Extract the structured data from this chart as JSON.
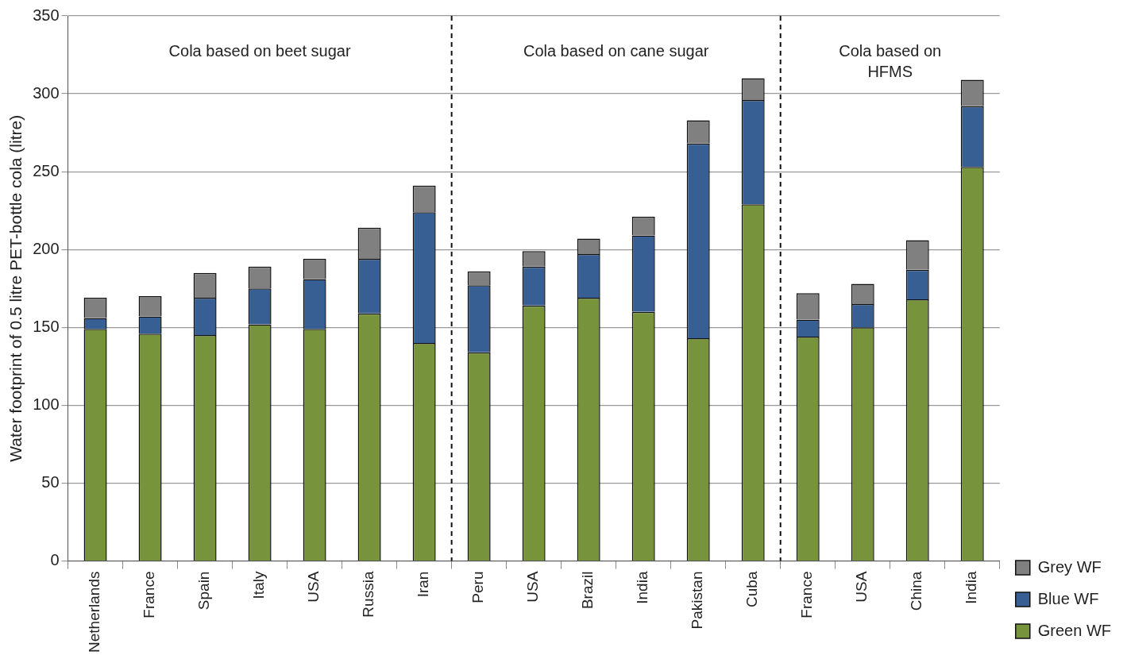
{
  "chart_data": {
    "type": "bar",
    "stacked": true,
    "ylabel": "Water footprint of 0.5 litre PET-bottle cola (litre)",
    "categories": [
      "Netherlands",
      "France",
      "Spain",
      "Italy",
      "USA",
      "Russia",
      "Iran",
      "Peru",
      "USA",
      "Brazil",
      "India",
      "Pakistan",
      "Cuba",
      "France",
      "USA",
      "China",
      "India"
    ],
    "series": [
      {
        "name": "Green WF",
        "color": "#77933c",
        "values": [
          149,
          146,
          145,
          152,
          149,
          159,
          140,
          134,
          164,
          169,
          160,
          143,
          229,
          144,
          150,
          168,
          253
        ]
      },
      {
        "name": "Blue WF",
        "color": "#375f93",
        "values": [
          7,
          11,
          24,
          23,
          32,
          35,
          84,
          43,
          25,
          28,
          49,
          125,
          67,
          11,
          15,
          19,
          39
        ]
      },
      {
        "name": "Grey WF",
        "color": "#808080",
        "values": [
          13,
          13,
          16,
          14,
          13,
          20,
          17,
          9,
          10,
          10,
          12,
          15,
          14,
          17,
          13,
          19,
          17
        ]
      }
    ],
    "ylim": [
      0,
      350
    ],
    "yticks": [
      0,
      50,
      100,
      150,
      200,
      250,
      300,
      350
    ],
    "grid": "y",
    "legend": "right",
    "annotations": [
      "Cola based on beet sugar",
      "Cola based on cane sugar",
      "Cola based on HFMS"
    ]
  }
}
